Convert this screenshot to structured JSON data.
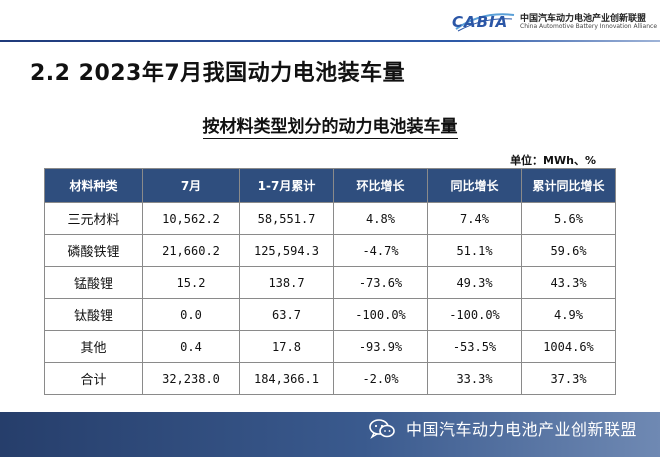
{
  "header": {
    "logo_mark": "CABIA",
    "logo_cn": "中国汽车动力电池产业创新联盟",
    "logo_en": "China Automotive Battery Innovation Alliance"
  },
  "section_title": "2.2 2023年7月我国动力电池装车量",
  "table": {
    "title": "按材料类型划分的动力电池装车量",
    "unit": "单位：MWh、%",
    "columns": [
      "材料种类",
      "7月",
      "1-7月累计",
      "环比增长",
      "同比增长",
      "累计同比增长"
    ],
    "rows": [
      [
        "三元材料",
        "10,562.2",
        "58,551.7",
        "4.8%",
        "7.4%",
        "5.6%"
      ],
      [
        "磷酸铁锂",
        "21,660.2",
        "125,594.3",
        "-4.7%",
        "51.1%",
        "59.6%"
      ],
      [
        "锰酸锂",
        "15.2",
        "138.7",
        "-73.6%",
        "49.3%",
        "43.3%"
      ],
      [
        "钛酸锂",
        "0.0",
        "63.7",
        "-100.0%",
        "-100.0%",
        "4.9%"
      ],
      [
        "其他",
        "0.4",
        "17.8",
        "-93.9%",
        "-53.5%",
        "1004.6%"
      ],
      [
        "合计",
        "32,238.0",
        "184,366.1",
        "-2.0%",
        "33.3%",
        "37.3%"
      ]
    ]
  },
  "footer": {
    "text": "中国汽车动力电池产业创新联盟",
    "icon": "wechat-icon"
  },
  "colors": {
    "header_fill": "#2f4e7e",
    "footer_fill": "#263e6b",
    "accent": "#2b56a6"
  }
}
